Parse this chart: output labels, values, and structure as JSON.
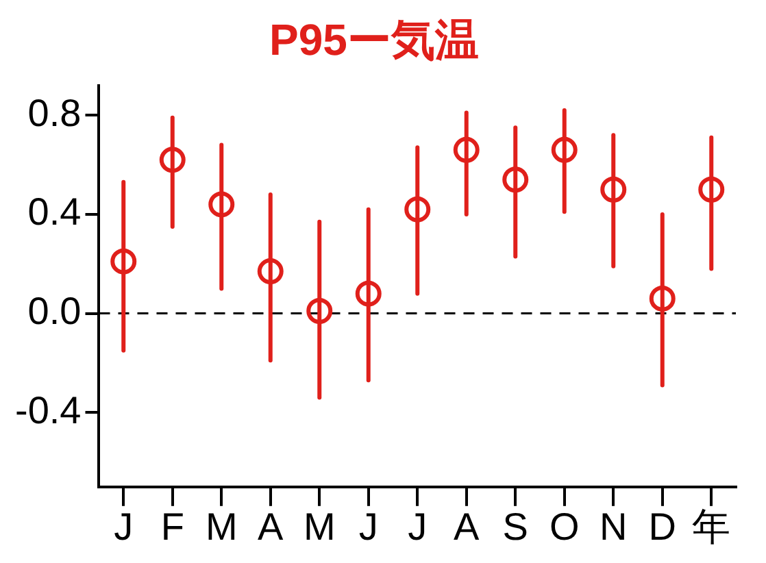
{
  "chart_data": {
    "type": "scatter",
    "title": "P95ー気温",
    "categories": [
      "J",
      "F",
      "M",
      "A",
      "M",
      "J",
      "J",
      "A",
      "S",
      "O",
      "N",
      "D",
      "年"
    ],
    "series": [
      {
        "color": "#e0201b",
        "values": [
          0.21,
          0.62,
          0.44,
          0.17,
          0.01,
          0.08,
          0.42,
          0.66,
          0.54,
          0.66,
          0.5,
          0.06,
          0.5
        ],
        "errors": [
          [
            -0.15,
            0.53
          ],
          [
            0.35,
            0.79
          ],
          [
            0.1,
            0.68
          ],
          [
            -0.19,
            0.48
          ],
          [
            -0.34,
            0.37
          ],
          [
            -0.27,
            0.42
          ],
          [
            0.08,
            0.67
          ],
          [
            0.4,
            0.81
          ],
          [
            0.23,
            0.75
          ],
          [
            0.41,
            0.82
          ],
          [
            0.19,
            0.72
          ],
          [
            -0.29,
            0.4
          ],
          [
            0.18,
            0.71
          ]
        ]
      }
    ],
    "ylim": [
      -0.7,
      0.92
    ],
    "yticks": [
      {
        "value": 0.8,
        "label": "0.8"
      },
      {
        "value": 0.4,
        "label": "0.4"
      },
      {
        "value": 0,
        "label": "0.0"
      },
      {
        "value": -0.4,
        "label": "-0.4"
      }
    ],
    "ref_lines": [
      {
        "axis": "y",
        "value": 0,
        "color": "#000000",
        "line_style": "dashed"
      }
    ],
    "marker": "circle",
    "grid": false,
    "legend": false
  }
}
